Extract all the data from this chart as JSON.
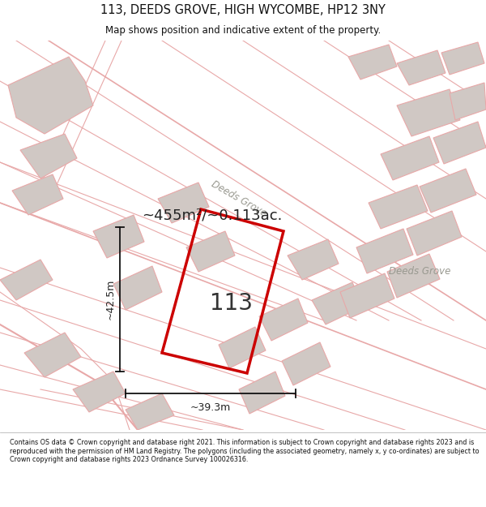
{
  "title_line1": "113, DEEDS GROVE, HIGH WYCOMBE, HP12 3NY",
  "title_line2": "Map shows position and indicative extent of the property.",
  "footer_text": "Contains OS data © Crown copyright and database right 2021. This information is subject to Crown copyright and database rights 2023 and is reproduced with the permission of HM Land Registry. The polygons (including the associated geometry, namely x, y co-ordinates) are subject to Crown copyright and database rights 2023 Ordnance Survey 100026316.",
  "area_label": "~455m²/~0.113ac.",
  "number_label": "113",
  "width_label": "~39.3m",
  "height_label": "~42.5m",
  "road_label_diag": "Deeds Grove",
  "road_label_right": "Deeds Grove",
  "red_outline": "#cc0000",
  "pink_line": "#e8a8a8",
  "gray_fill": "#d0c8c4",
  "white_bg": "#ffffff"
}
